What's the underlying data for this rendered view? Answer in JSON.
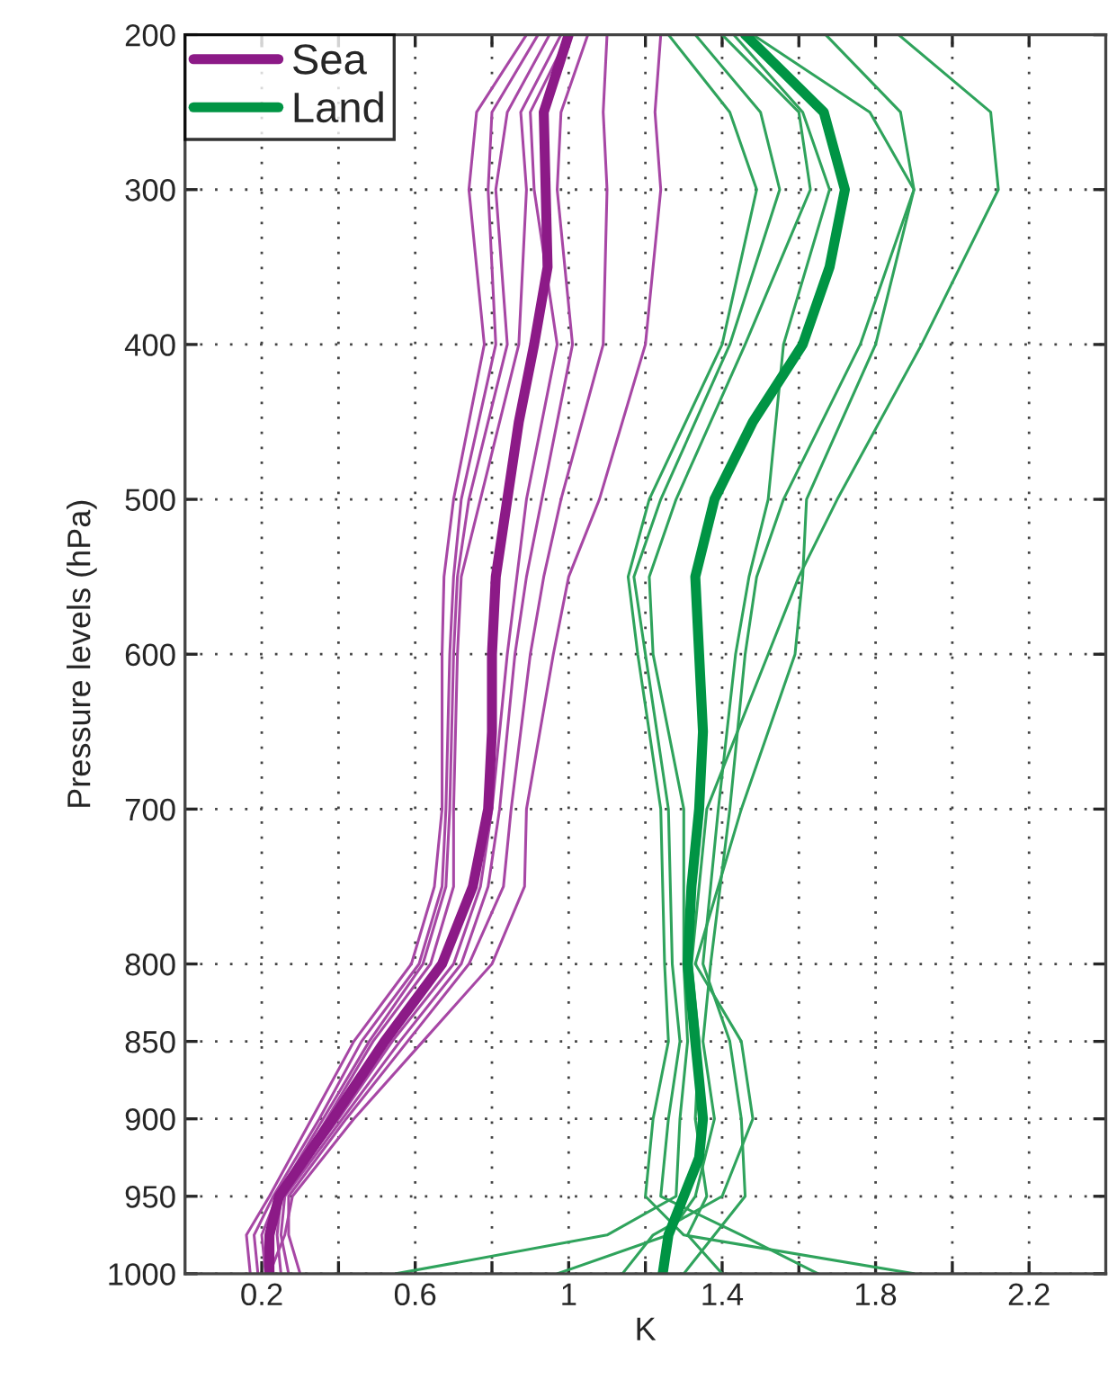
{
  "chart_data": {
    "type": "line",
    "xlabel": "K",
    "ylabel": "Pressure levels (hPa)",
    "xlim": [
      0,
      2.4
    ],
    "xticks": [
      0.2,
      {
        "value": 0.4,
        "label": null
      },
      0.6,
      {
        "value": 0.8,
        "label": null
      },
      1,
      {
        "value": 1.2,
        "label": null
      },
      1.4,
      {
        "value": 1.6,
        "label": null
      },
      1.8,
      {
        "value": 2.0,
        "label": null
      },
      2.2
    ],
    "ylim": [
      1000,
      200
    ],
    "yticks": [
      200,
      300,
      400,
      500,
      600,
      700,
      800,
      850,
      900,
      950,
      1000
    ],
    "grid": true,
    "legend": "top left",
    "line_style": "solid",
    "marker": "none",
    "series": [
      {
        "color": "#a747a5",
        "x": [
          0.89,
          0.76,
          0.74,
          0.78,
          0.7,
          0.675,
          0.67,
          0.67,
          0.65,
          0.59,
          0.44,
          0.33,
          0.22,
          0.16,
          0.17
        ],
        "values": [
          200,
          250,
          300,
          400,
          500,
          550,
          600,
          700,
          750,
          800,
          850,
          900,
          950,
          975,
          1000
        ]
      },
      {
        "color": "#a747a5",
        "x": [
          0.92,
          0.8,
          0.79,
          0.81,
          0.72,
          0.7,
          0.69,
          0.68,
          0.67,
          0.61,
          0.46,
          0.35,
          0.23,
          0.18,
          0.19
        ],
        "values": [
          200,
          250,
          300,
          400,
          500,
          550,
          600,
          700,
          750,
          800,
          850,
          900,
          950,
          975,
          1000
        ]
      },
      {
        "color": "#a747a5",
        "x": [
          0.95,
          0.84,
          0.81,
          0.84,
          0.74,
          0.71,
          0.7,
          0.69,
          0.68,
          0.62,
          0.48,
          0.36,
          0.24,
          0.2,
          0.21
        ],
        "values": [
          200,
          250,
          300,
          400,
          500,
          550,
          600,
          700,
          750,
          800,
          850,
          900,
          950,
          975,
          1000
        ]
      },
      {
        "color": "#a747a5",
        "x": [
          0.98,
          0.875,
          0.89,
          0.87,
          0.77,
          0.72,
          0.71,
          0.7,
          0.7,
          0.64,
          0.49,
          0.37,
          0.25,
          0.22,
          0.23
        ],
        "values": [
          200,
          250,
          300,
          400,
          500,
          550,
          600,
          700,
          750,
          800,
          850,
          900,
          950,
          975,
          1000
        ]
      },
      {
        "color": "#a747a5",
        "x": [
          1.0,
          0.9,
          0.91,
          0.97,
          0.89,
          0.865,
          0.84,
          0.8,
          0.77,
          0.7,
          0.54,
          0.4,
          0.25,
          0.24,
          0.25
        ],
        "values": [
          200,
          250,
          300,
          400,
          500,
          550,
          600,
          700,
          750,
          800,
          850,
          900,
          950,
          975,
          1000
        ]
      },
      {
        "color": "#a747a5",
        "x": [
          1.05,
          0.98,
          0.97,
          1.01,
          0.93,
          0.89,
          0.86,
          0.82,
          0.79,
          0.72,
          0.56,
          0.41,
          0.26,
          0.25,
          0.27
        ],
        "values": [
          200,
          250,
          300,
          400,
          500,
          550,
          600,
          700,
          750,
          800,
          850,
          900,
          950,
          975,
          1000
        ]
      },
      {
        "color": "#a747a5",
        "x": [
          1.1,
          1.09,
          1.1,
          1.09,
          0.98,
          0.935,
          0.9,
          0.85,
          0.83,
          0.74,
          0.58,
          0.42,
          0.27,
          0.27,
          0.3
        ],
        "values": [
          200,
          250,
          300,
          400,
          500,
          550,
          600,
          700,
          750,
          800,
          850,
          900,
          950,
          975,
          1000
        ]
      },
      {
        "color": "#a747a5",
        "x": [
          1.24,
          1.225,
          1.24,
          1.2,
          1.08,
          1.0,
          0.96,
          0.89,
          0.885,
          0.8,
          0.62,
          0.44,
          0.28,
          0.26,
          0.22
        ],
        "values": [
          200,
          250,
          300,
          400,
          500,
          550,
          600,
          700,
          750,
          800,
          850,
          900,
          950,
          975,
          1000
        ]
      },
      {
        "color": "#2fa35c",
        "x": [
          1.26,
          1.42,
          1.49,
          1.4,
          1.21,
          1.155,
          1.18,
          1.24,
          1.25,
          1.26,
          1.22,
          1.2,
          1.3,
          1.9
        ],
        "values": [
          200,
          250,
          300,
          400,
          500,
          550,
          600,
          700,
          800,
          850,
          900,
          950,
          975,
          1000
        ]
      },
      {
        "color": "#2fa35c",
        "x": [
          1.33,
          1.5,
          1.55,
          1.42,
          1.24,
          1.17,
          1.2,
          1.26,
          1.27,
          1.29,
          1.26,
          1.24,
          1.45,
          1.65
        ],
        "values": [
          200,
          250,
          300,
          400,
          500,
          550,
          600,
          700,
          800,
          850,
          900,
          950,
          975,
          1000
        ]
      },
      {
        "color": "#2fa35c",
        "x": [
          1.4,
          1.6,
          1.63,
          1.46,
          1.28,
          1.21,
          1.22,
          1.3,
          1.3,
          1.31,
          1.29,
          1.28,
          1.1,
          0.55
        ],
        "values": [
          200,
          250,
          300,
          400,
          500,
          550,
          600,
          700,
          800,
          850,
          900,
          950,
          975,
          1000
        ]
      },
      {
        "color": "#2fa35c",
        "x": [
          1.43,
          1.61,
          1.68,
          1.56,
          1.52,
          1.47,
          1.435,
          1.39,
          1.35,
          1.42,
          1.45,
          1.46,
          1.38,
          1.3
        ],
        "values": [
          200,
          250,
          300,
          400,
          500,
          550,
          600,
          700,
          800,
          850,
          900,
          950,
          975,
          1000
        ]
      },
      {
        "color": "#2fa35c",
        "x": [
          1.48,
          1.785,
          1.9,
          1.76,
          1.56,
          1.49,
          1.46,
          1.42,
          1.37,
          1.35,
          1.38,
          1.33,
          1.26,
          0.97
        ],
        "values": [
          200,
          250,
          300,
          400,
          500,
          550,
          600,
          700,
          800,
          850,
          900,
          950,
          975,
          1000
        ]
      },
      {
        "color": "#2fa35c",
        "x": [
          1.67,
          1.865,
          1.9,
          1.8,
          1.62,
          1.61,
          1.59,
          1.45,
          1.33,
          1.45,
          1.48,
          1.4,
          1.22,
          1.14
        ],
        "values": [
          200,
          250,
          300,
          400,
          500,
          550,
          600,
          700,
          800,
          850,
          900,
          950,
          975,
          1000
        ]
      },
      {
        "color": "#2fa35c",
        "x": [
          1.86,
          2.1,
          2.12,
          1.92,
          1.7,
          1.6,
          1.52,
          1.36,
          1.32,
          1.34,
          1.33,
          1.36,
          1.31,
          1.4
        ],
        "values": [
          200,
          250,
          300,
          400,
          500,
          550,
          600,
          700,
          800,
          850,
          900,
          950,
          975,
          1000
        ]
      },
      {
        "name": "Sea",
        "color": "#8c1a87",
        "x": [
          1.0,
          0.935,
          0.94,
          0.945,
          0.91,
          0.87,
          0.84,
          0.81,
          0.8,
          0.8,
          0.79,
          0.75,
          0.67,
          0.52,
          0.385,
          0.245,
          0.22,
          0.22
        ],
        "values": [
          200,
          250,
          300,
          350,
          400,
          450,
          500,
          550,
          600,
          650,
          700,
          750,
          800,
          850,
          900,
          950,
          975,
          1000
        ]
      },
      {
        "name": "Land",
        "color": "#009444",
        "x": [
          1.46,
          1.665,
          1.72,
          1.68,
          1.61,
          1.48,
          1.38,
          1.33,
          1.34,
          1.35,
          1.34,
          1.32,
          1.31,
          1.33,
          1.35,
          1.34,
          1.3,
          1.26,
          1.245
        ],
        "values": [
          200,
          250,
          300,
          350,
          400,
          450,
          500,
          550,
          600,
          650,
          700,
          750,
          800,
          850,
          900,
          925,
          950,
          975,
          1000
        ]
      }
    ]
  }
}
